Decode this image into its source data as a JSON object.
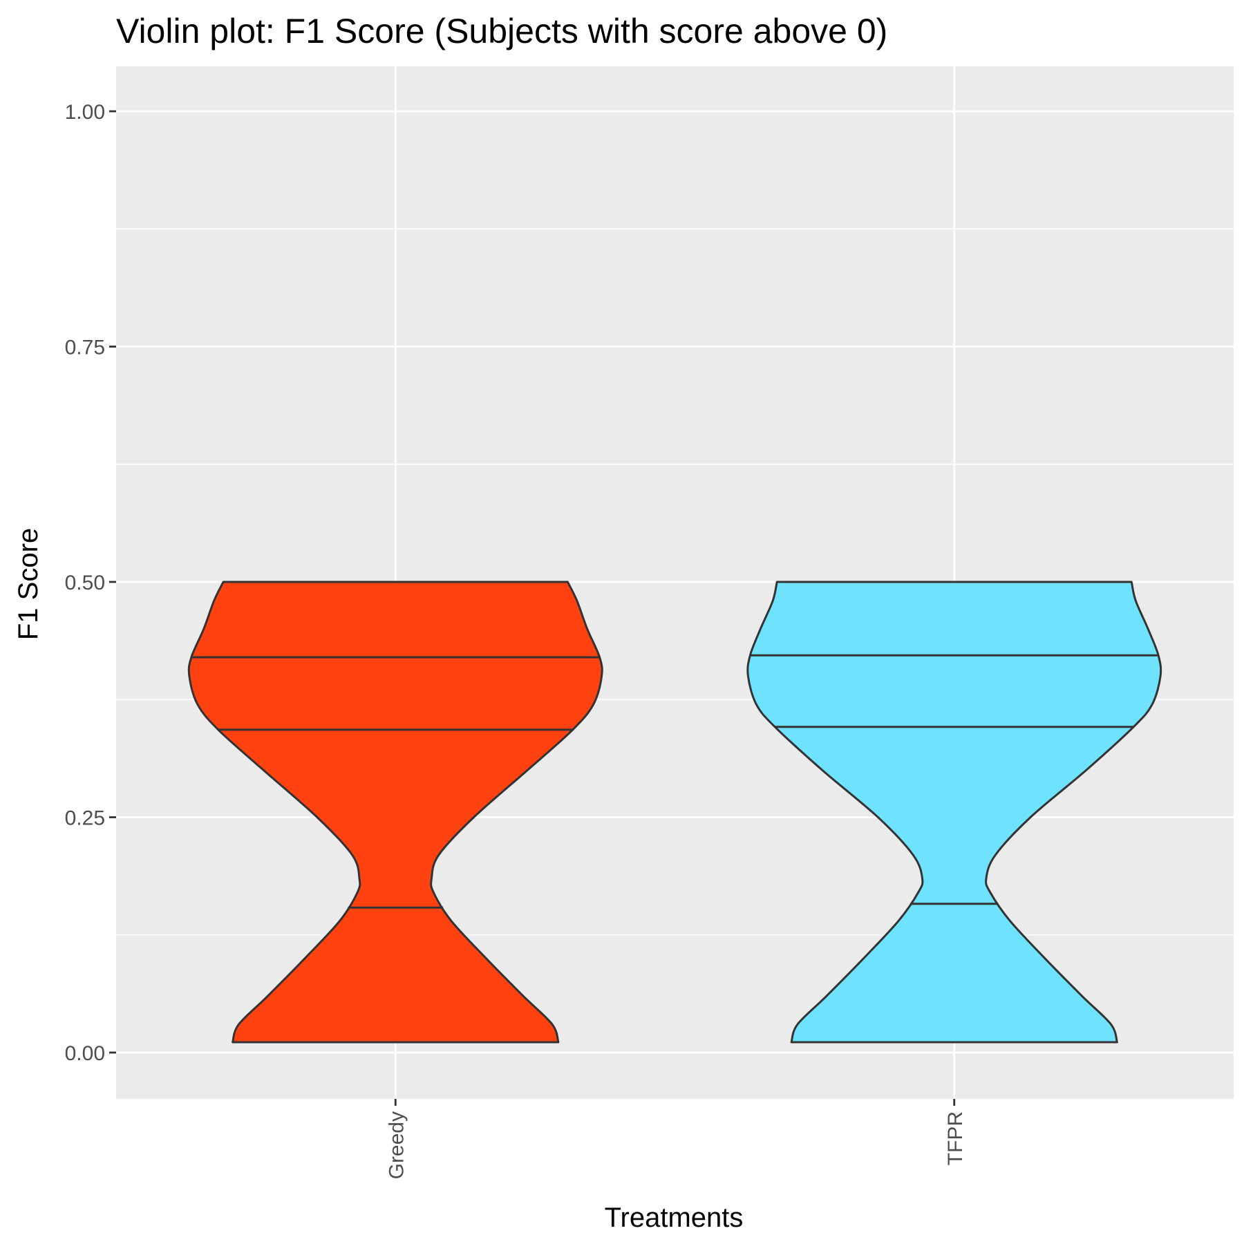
{
  "chart_data": {
    "type": "violin",
    "title": "Violin plot: F1 Score (Subjects with score above 0)",
    "xlabel": "Treatments",
    "ylabel": "F1 Score",
    "ylim": [
      -0.045,
      1.05
    ],
    "yticks": [
      "0.00",
      "0.25",
      "0.50",
      "0.75",
      "1.00"
    ],
    "ytick_values": [
      0,
      0.25,
      0.5,
      0.75,
      1.0
    ],
    "grid": true,
    "categories": [
      "Greedy",
      "TFPR"
    ],
    "series": [
      {
        "category": "Greedy",
        "fill": "#FF4210",
        "range": [
          0.011,
          0.5
        ],
        "quantiles": [
          0.154,
          0.343,
          0.42
        ],
        "density_profile": [
          {
            "y": 0.011,
            "w": 0.79
          },
          {
            "y": 0.03,
            "w": 0.76
          },
          {
            "y": 0.06,
            "w": 0.62
          },
          {
            "y": 0.1,
            "w": 0.44
          },
          {
            "y": 0.14,
            "w": 0.27
          },
          {
            "y": 0.17,
            "w": 0.185
          },
          {
            "y": 0.185,
            "w": 0.175
          },
          {
            "y": 0.21,
            "w": 0.21
          },
          {
            "y": 0.25,
            "w": 0.38
          },
          {
            "y": 0.3,
            "w": 0.64
          },
          {
            "y": 0.343,
            "w": 0.86
          },
          {
            "y": 0.37,
            "w": 0.96
          },
          {
            "y": 0.4,
            "w": 1.0
          },
          {
            "y": 0.42,
            "w": 0.99
          },
          {
            "y": 0.45,
            "w": 0.93
          },
          {
            "y": 0.48,
            "w": 0.88
          },
          {
            "y": 0.5,
            "w": 0.835
          }
        ]
      },
      {
        "category": "TFPR",
        "fill": "#6EE2FF",
        "range": [
          0.011,
          0.5
        ],
        "quantiles": [
          0.158,
          0.346,
          0.422
        ],
        "density_profile": [
          {
            "y": 0.011,
            "w": 0.79
          },
          {
            "y": 0.03,
            "w": 0.76
          },
          {
            "y": 0.06,
            "w": 0.62
          },
          {
            "y": 0.1,
            "w": 0.44
          },
          {
            "y": 0.14,
            "w": 0.27
          },
          {
            "y": 0.17,
            "w": 0.175
          },
          {
            "y": 0.185,
            "w": 0.155
          },
          {
            "y": 0.21,
            "w": 0.2
          },
          {
            "y": 0.25,
            "w": 0.37
          },
          {
            "y": 0.3,
            "w": 0.64
          },
          {
            "y": 0.346,
            "w": 0.87
          },
          {
            "y": 0.37,
            "w": 0.96
          },
          {
            "y": 0.4,
            "w": 1.0
          },
          {
            "y": 0.422,
            "w": 0.99
          },
          {
            "y": 0.45,
            "w": 0.94
          },
          {
            "y": 0.48,
            "w": 0.88
          },
          {
            "y": 0.5,
            "w": 0.86
          }
        ]
      }
    ]
  }
}
